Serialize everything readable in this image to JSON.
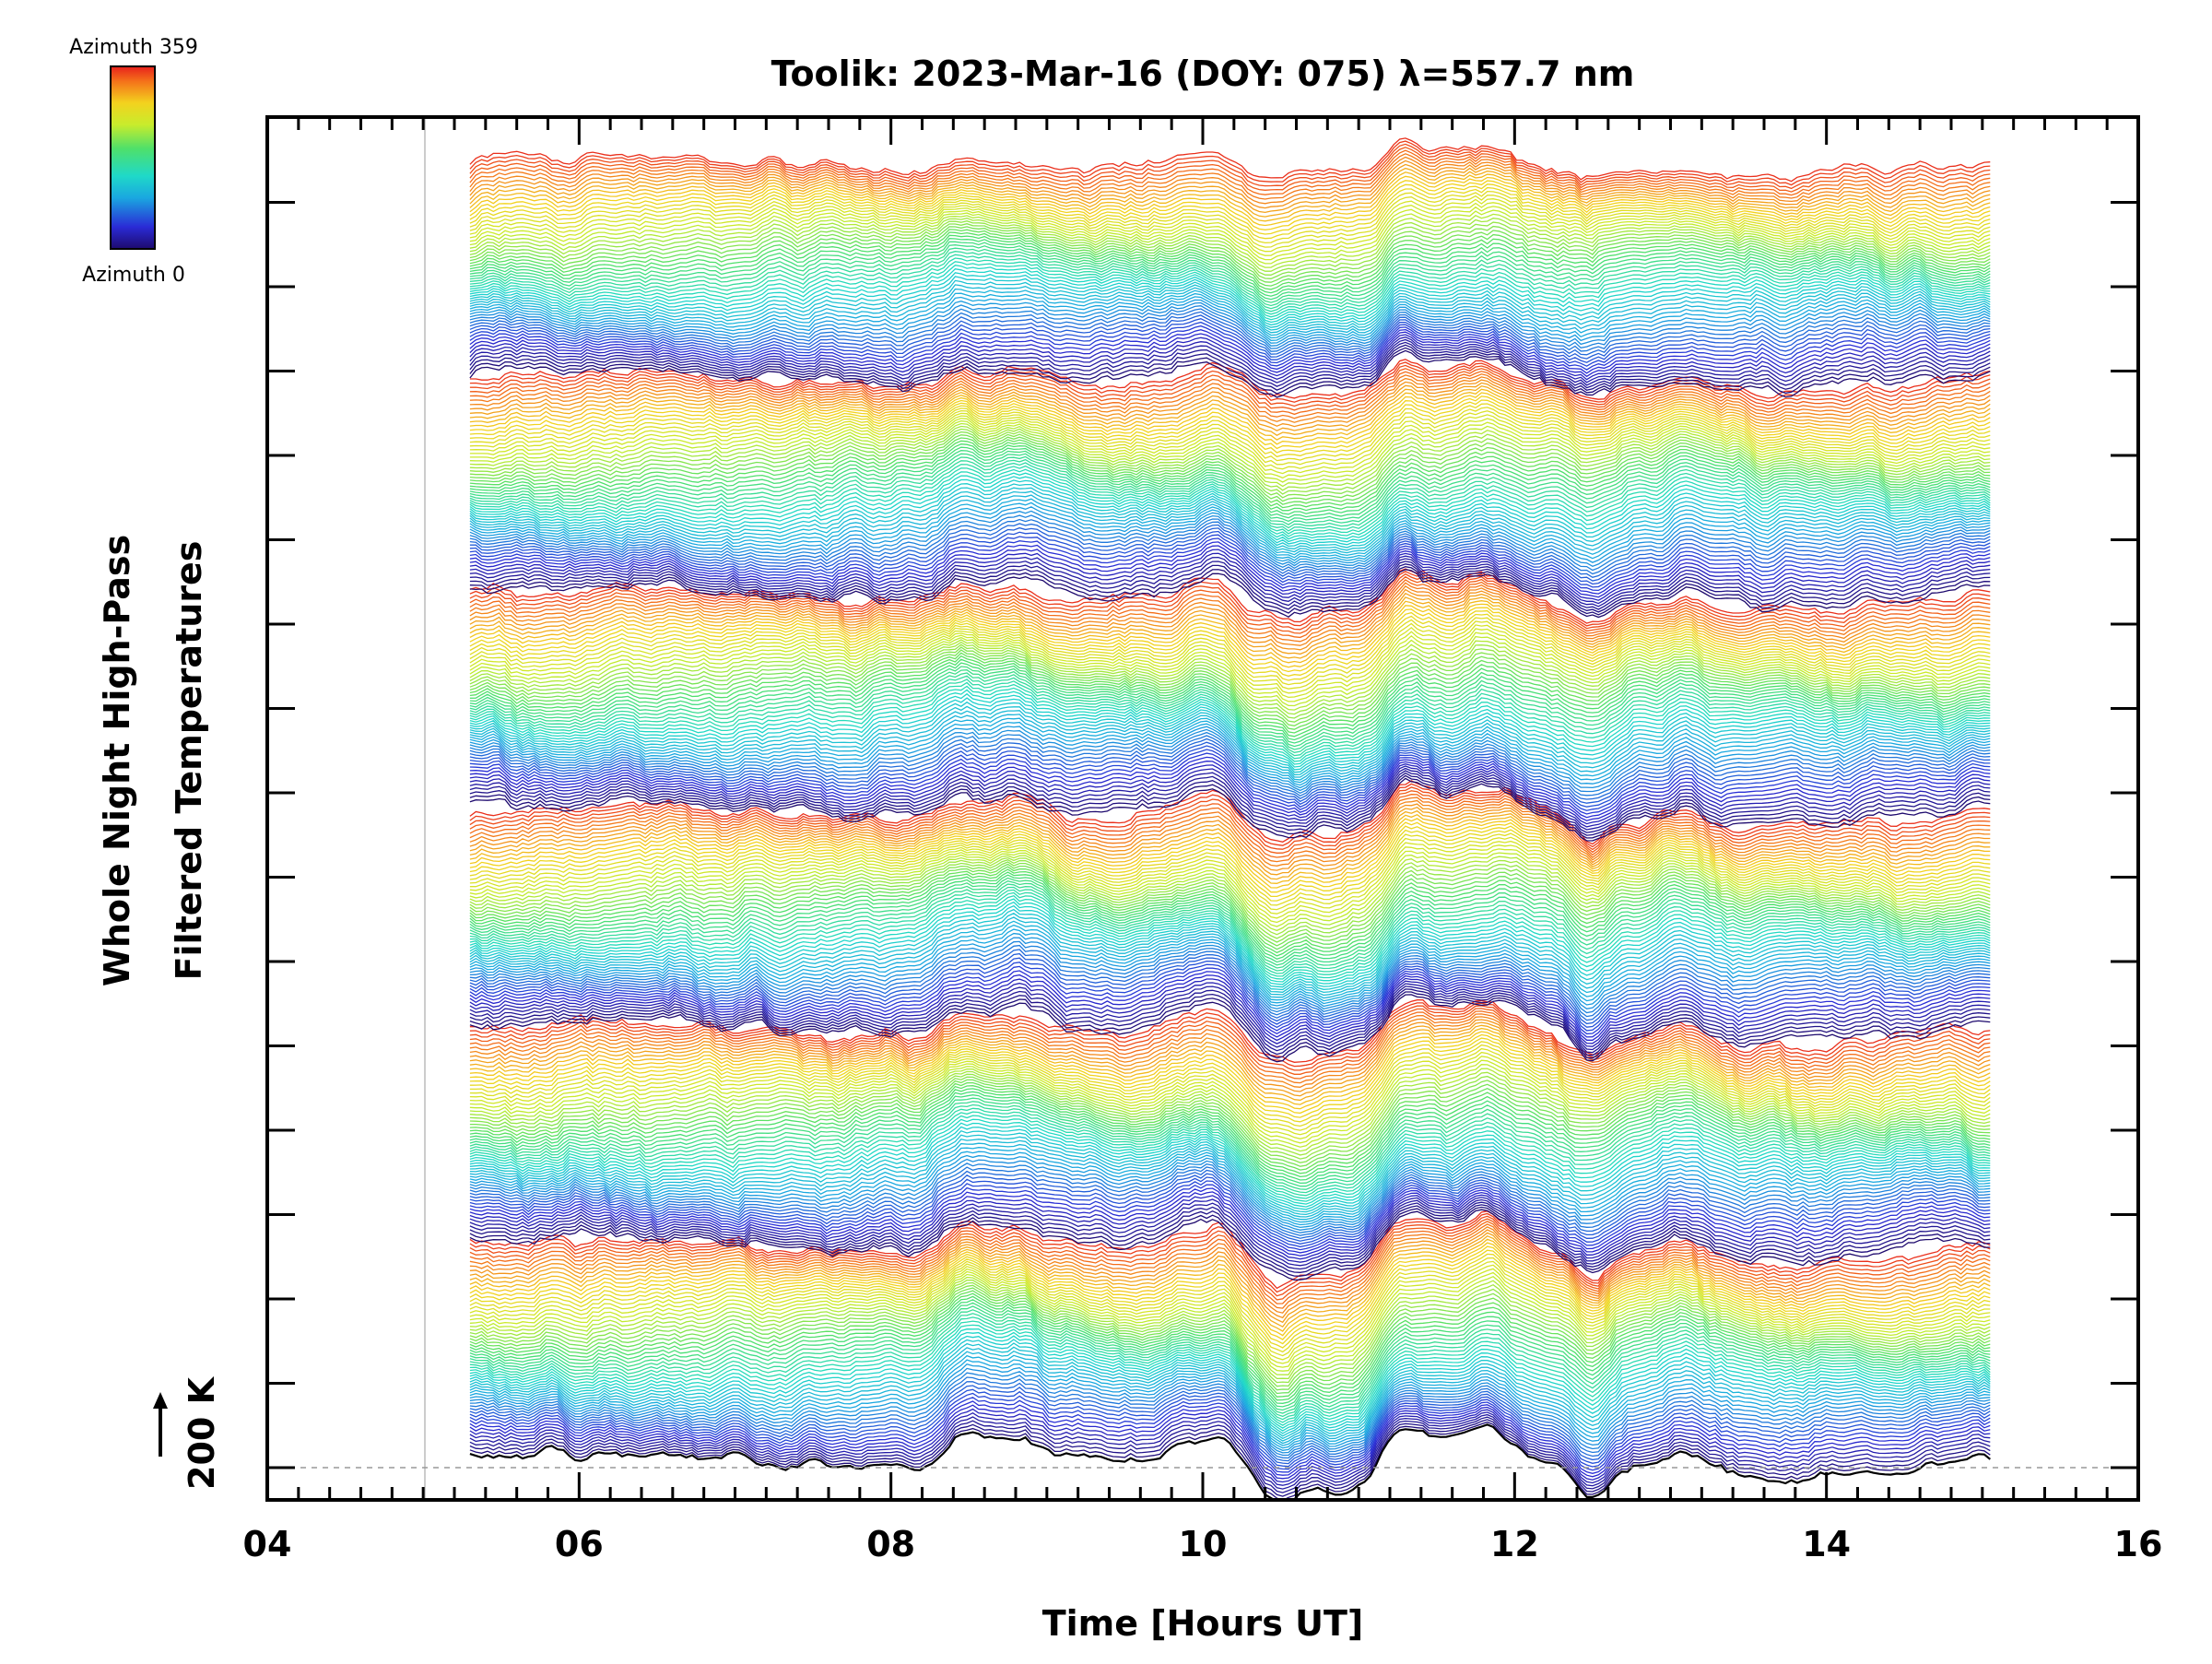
{
  "chart_data": {
    "type": "line",
    "title": "Toolik: 2023-Mar-16 (DOY: 075) λ=557.7 nm",
    "xlabel": "Time [Hours UT]",
    "ylabel_lines": [
      "Whole Night High-Pass",
      "Filtered Temperatures"
    ],
    "scale_bar_label": "200 K",
    "xlim": [
      4,
      16
    ],
    "x_ticks": [
      "04",
      "06",
      "08",
      "10",
      "12",
      "14",
      "16"
    ],
    "x_data_range": [
      5.3,
      15.05
    ],
    "series_count": 384,
    "colorbar": {
      "top_label": "Azimuth 359",
      "bottom_label": "Azimuth 0",
      "colormap": "rainbow"
    },
    "features": [
      {
        "x": 8.8,
        "description_value": 1
      },
      {
        "x": 10.85,
        "description_value": -1
      },
      {
        "x": 11.3,
        "description_value": 1
      },
      {
        "x": 11.8,
        "description_value": 1
      },
      {
        "x": 12.5,
        "description_value": -1
      }
    ],
    "grid": false,
    "legend": "colorbar top-left"
  }
}
